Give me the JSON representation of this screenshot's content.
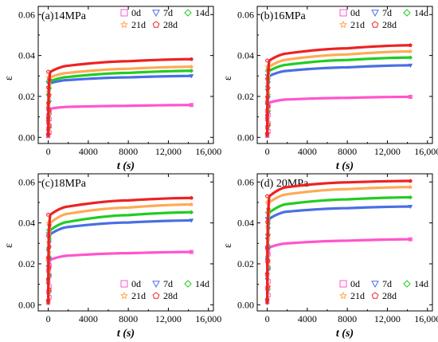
{
  "colors": {
    "0d": "#ff55cc",
    "7d": "#4a6fe3",
    "14d": "#22cc22",
    "21d": "#ffaa55",
    "28d": "#ee2222"
  },
  "chart_data": [
    {
      "type": "line",
      "title": "(a)14MPa",
      "xlabel": "t (s)",
      "ylabel": "ε",
      "xlim": [
        -1000,
        16500
      ],
      "ylim": [
        -0.003,
        0.064
      ],
      "xticks": [
        "0",
        "4000",
        "8000",
        "12,000",
        "16,000"
      ],
      "yticks": [
        "0.00",
        "0.02",
        "0.04",
        "0.06"
      ],
      "legend_position": "top-right",
      "series": [
        {
          "name": "0d",
          "marker": "square",
          "values": [
            0.014,
            0.0149,
            0.0154,
            0.0158
          ]
        },
        {
          "name": "21d",
          "marker": "star",
          "values": [
            0.0293,
            0.0315,
            0.0335,
            0.0345
          ]
        },
        {
          "name": "7d",
          "marker": "triangle-down",
          "values": [
            0.0265,
            0.028,
            0.0293,
            0.03
          ]
        },
        {
          "name": "28d",
          "marker": "pentagon",
          "values": [
            0.032,
            0.035,
            0.0372,
            0.0382
          ]
        },
        {
          "name": "14d",
          "marker": "diamond",
          "values": [
            0.0275,
            0.0295,
            0.0315,
            0.0325
          ]
        }
      ],
      "x": [
        200,
        2000,
        8000,
        14300
      ]
    },
    {
      "type": "line",
      "title": "(b)16MPa",
      "xlabel": "t (s)",
      "ylabel": "ε",
      "xlim": [
        -1000,
        16500
      ],
      "ylim": [
        -0.003,
        0.064
      ],
      "xticks": [
        "0",
        "4000",
        "8000",
        "12,000",
        "16,000"
      ],
      "yticks": [
        "0.00",
        "0.02",
        "0.04",
        "0.06"
      ],
      "legend_position": "top-right",
      "series": [
        {
          "name": "0d",
          "marker": "square",
          "values": [
            0.017,
            0.0185,
            0.0193,
            0.0198
          ]
        },
        {
          "name": "21d",
          "marker": "star",
          "values": [
            0.0345,
            0.038,
            0.0405,
            0.042
          ]
        },
        {
          "name": "7d",
          "marker": "triangle-down",
          "values": [
            0.03,
            0.0325,
            0.0342,
            0.0352
          ]
        },
        {
          "name": "28d",
          "marker": "pentagon",
          "values": [
            0.0375,
            0.041,
            0.0435,
            0.045
          ]
        },
        {
          "name": "14d",
          "marker": "diamond",
          "values": [
            0.0325,
            0.0355,
            0.0378,
            0.039
          ]
        }
      ],
      "x": [
        200,
        2000,
        8000,
        14300
      ]
    },
    {
      "type": "line",
      "title": "(c)18MPa",
      "xlabel": "t (s)",
      "ylabel": "ε",
      "xlim": [
        -1000,
        16500
      ],
      "ylim": [
        -0.003,
        0.064
      ],
      "xticks": [
        "0",
        "4000",
        "8000",
        "12,000",
        "16,000"
      ],
      "yticks": [
        "0.00",
        "0.02",
        "0.04",
        "0.06"
      ],
      "legend_position": "bottom-right",
      "series": [
        {
          "name": "0d",
          "marker": "square",
          "values": [
            0.022,
            0.024,
            0.0252,
            0.0258
          ]
        },
        {
          "name": "21d",
          "marker": "star",
          "values": [
            0.04,
            0.0445,
            0.0475,
            0.049
          ]
        },
        {
          "name": "7d",
          "marker": "triangle-down",
          "values": [
            0.0345,
            0.038,
            0.0402,
            0.0412
          ]
        },
        {
          "name": "28d",
          "marker": "pentagon",
          "values": [
            0.044,
            0.048,
            0.051,
            0.0522
          ]
        },
        {
          "name": "14d",
          "marker": "diamond",
          "values": [
            0.0365,
            0.0405,
            0.0438,
            0.0452
          ]
        }
      ],
      "x": [
        200,
        2000,
        8000,
        14300
      ]
    },
    {
      "type": "line",
      "title": "(d) 20MPa",
      "xlabel": "t (s)",
      "ylabel": "ε",
      "xlim": [
        -1000,
        16500
      ],
      "ylim": [
        -0.003,
        0.064
      ],
      "xticks": [
        "0",
        "4000",
        "8000",
        "12,000",
        "16,000"
      ],
      "yticks": [
        "0.00",
        "0.02",
        "0.04",
        "0.06"
      ],
      "legend_position": "bottom-right",
      "series": [
        {
          "name": "0d",
          "marker": "square",
          "values": [
            0.028,
            0.03,
            0.0313,
            0.032
          ]
        },
        {
          "name": "21d",
          "marker": "star",
          "values": [
            0.05,
            0.054,
            0.0565,
            0.0575
          ]
        },
        {
          "name": "7d",
          "marker": "triangle-down",
          "values": [
            0.042,
            0.0455,
            0.0472,
            0.048
          ]
        },
        {
          "name": "28d",
          "marker": "pentagon",
          "values": [
            0.053,
            0.0575,
            0.0598,
            0.0605
          ]
        },
        {
          "name": "14d",
          "marker": "diamond",
          "values": [
            0.045,
            0.0492,
            0.0515,
            0.0525
          ]
        }
      ],
      "x": [
        200,
        2000,
        8000,
        14300
      ]
    }
  ]
}
